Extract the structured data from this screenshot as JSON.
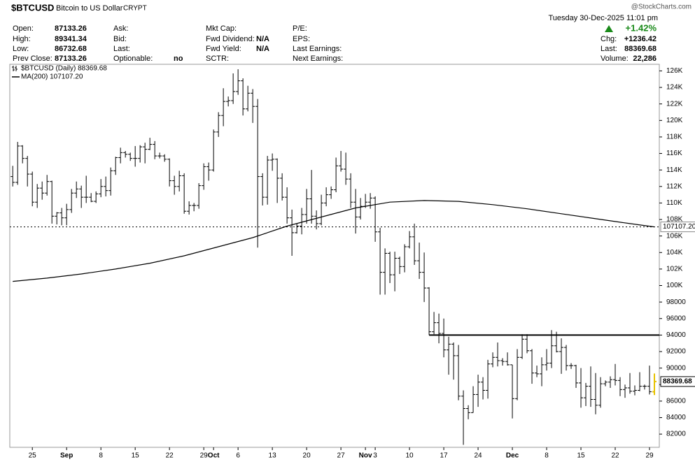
{
  "header": {
    "symbol": "$BTCUSD",
    "name": "Bitcoin to US Dollar",
    "exchange": "CRYPT",
    "brand": "@StockCharts.com",
    "datetime": "Tuesday 30-Dec-2025 11:01 pm",
    "col1": [
      {
        "label": "Open:",
        "value": "87133.26"
      },
      {
        "label": "High:",
        "value": "89341.34"
      },
      {
        "label": "Low:",
        "value": "86732.68"
      },
      {
        "label": "Prev Close:",
        "value": "87133.26"
      }
    ],
    "col2": [
      {
        "label": "Ask:"
      },
      {
        "label": "Bid:"
      },
      {
        "label": "Last:"
      },
      {
        "label": "Optionable:",
        "value": "no"
      }
    ],
    "col3": [
      {
        "label": "Mkt Cap:"
      },
      {
        "label": "Fwd Dividend:",
        "value": "N/A"
      },
      {
        "label": "Fwd Yield:",
        "value": "N/A"
      },
      {
        "label": "SCTR:"
      }
    ],
    "col4": [
      {
        "label": "P/E:"
      },
      {
        "label": "EPS:"
      },
      {
        "label": "Last Earnings:"
      },
      {
        "label": "Next Earnings:"
      }
    ],
    "change_pct": "+1.42%",
    "chg_label": "Chg:",
    "chg": "+1236.42",
    "last_label": "Last:",
    "last": "88369.68",
    "volume_label": "Volume:",
    "volume": "22,286"
  },
  "chart_data": {
    "type": "ohlc",
    "series": [
      {
        "name": "$BTCUSD (Daily) 88369.68",
        "color": "#000000",
        "last_color": "#e6c200",
        "open": [
          113.2,
          112.5,
          116.9,
          115.4,
          113.5,
          110.1,
          111.8,
          111.2,
          112.6,
          108.4,
          108.8,
          108.2,
          109.2,
          111.2,
          111.7,
          110.7,
          110.7,
          110.2,
          111.1,
          112.0,
          111.5,
          113.9,
          115.5,
          116.1,
          115.9,
          115.4,
          115.4,
          116.8,
          116.5,
          117.1,
          115.7,
          115.7,
          115.3,
          112.7,
          112.0,
          113.3,
          109.0,
          109.7,
          109.7,
          112.1,
          114.4,
          114.0,
          118.6,
          120.6,
          122.3,
          122.4,
          123.5,
          124.8,
          121.4,
          123.3,
          121.7,
          113.2,
          110.7,
          115.2,
          115.3,
          113.0,
          110.7,
          108.2,
          106.4,
          107.2,
          108.6,
          110.5,
          108.4,
          107.5,
          110.0,
          111.0,
          111.6,
          114.5,
          114.1,
          112.9,
          110.1,
          108.3,
          109.6,
          110.1,
          110.6,
          106.5,
          101.6,
          103.9,
          101.3,
          103.3,
          102.3,
          104.7,
          105.9,
          103.0,
          101.6,
          99.7,
          94.4,
          95.5,
          94.2,
          92.2,
          92.9,
          91.5,
          86.6,
          85.1,
          84.6,
          86.8,
          88.3,
          87.3,
          90.5,
          91.3,
          90.9,
          90.8,
          90.4,
          86.3,
          91.3,
          93.5,
          92.1,
          89.4,
          89.3,
          90.4,
          90.6,
          92.7,
          92.0,
          92.5,
          90.3,
          90.3,
          88.2,
          86.4,
          87.8,
          86.2,
          85.5,
          88.1,
          88.3,
          88.6,
          88.5,
          87.4,
          87.6,
          87.2,
          87.3,
          87.8,
          87.8,
          87.13326
        ],
        "high": [
          114.5,
          117.4,
          117.0,
          115.7,
          113.8,
          112.3,
          112.6,
          113.4,
          112.7,
          108.9,
          109.4,
          109.9,
          111.7,
          112.6,
          112.1,
          113.3,
          111.2,
          111.4,
          112.9,
          113.2,
          114.3,
          115.6,
          116.7,
          116.3,
          116.1,
          116.9,
          117.0,
          117.3,
          117.9,
          117.5,
          116.1,
          115.9,
          115.4,
          113.3,
          113.9,
          113.6,
          110.2,
          110.0,
          112.4,
          114.8,
          114.9,
          118.9,
          121.0,
          123.9,
          122.9,
          125.7,
          126.2,
          125.1,
          124.2,
          123.8,
          122.6,
          113.6,
          115.7,
          116.0,
          115.4,
          113.6,
          111.9,
          109.2,
          107.5,
          109.4,
          111.7,
          114.0,
          109.1,
          111.0,
          111.9,
          112.0,
          115.5,
          116.3,
          116.1,
          113.6,
          111.7,
          110.6,
          111.1,
          111.2,
          110.8,
          107.0,
          104.5,
          104.1,
          104.1,
          103.5,
          105.0,
          106.6,
          107.5,
          105.2,
          104.0,
          99.8,
          96.8,
          96.6,
          96.0,
          93.8,
          93.1,
          92.8,
          87.3,
          85.5,
          87.8,
          89.2,
          88.9,
          91.0,
          91.9,
          93.1,
          91.2,
          91.9,
          90.4,
          92.3,
          94.1,
          94.1,
          92.3,
          90.3,
          91.3,
          92.3,
          94.6,
          94.4,
          93.6,
          92.8,
          90.6,
          90.4,
          90.0,
          88.2,
          90.2,
          89.4,
          88.9,
          88.5,
          89.0,
          90.5,
          88.9,
          88.0,
          89.4,
          87.9,
          89.5,
          88.0,
          90.3,
          89.34134
        ],
        "low": [
          112.0,
          112.2,
          114.8,
          112.0,
          109.6,
          109.4,
          110.4,
          110.9,
          107.5,
          107.4,
          107.3,
          107.3,
          108.8,
          110.6,
          109.4,
          110.0,
          110.1,
          110.0,
          110.7,
          110.8,
          110.9,
          113.4,
          114.8,
          115.5,
          115.1,
          114.4,
          114.9,
          114.8,
          116.4,
          115.3,
          115.4,
          115.0,
          112.0,
          111.0,
          111.4,
          108.7,
          108.6,
          109.0,
          109.3,
          111.6,
          112.7,
          113.8,
          118.0,
          119.3,
          121.7,
          122.0,
          123.1,
          120.6,
          121.1,
          119.7,
          104.6,
          109.7,
          109.8,
          113.9,
          110.0,
          110.3,
          107.5,
          103.6,
          106.3,
          106.2,
          107.5,
          107.5,
          106.8,
          107.3,
          109.6,
          110.5,
          111.3,
          113.8,
          112.2,
          109.4,
          106.3,
          108.0,
          109.4,
          109.3,
          105.3,
          98.9,
          98.9,
          100.3,
          99.3,
          101.4,
          101.6,
          104.5,
          102.5,
          100.8,
          98.0,
          94.0,
          94.1,
          93.0,
          91.3,
          89.2,
          88.6,
          86.1,
          80.7,
          83.8,
          84.6,
          85.3,
          86.2,
          86.3,
          90.1,
          90.2,
          90.3,
          90.3,
          83.9,
          86.1,
          91.1,
          91.8,
          88.1,
          88.9,
          87.8,
          89.7,
          90.0,
          91.9,
          89.3,
          89.7,
          89.9,
          87.6,
          85.2,
          85.4,
          85.3,
          84.4,
          85.2,
          87.8,
          87.6,
          87.9,
          86.6,
          86.4,
          86.9,
          86.7,
          87.2,
          87.4,
          86.8,
          86.73268
        ],
        "close": [
          112.5,
          116.9,
          115.4,
          113.5,
          110.1,
          111.8,
          111.2,
          112.6,
          108.4,
          108.8,
          108.2,
          109.2,
          111.2,
          111.7,
          110.7,
          110.7,
          110.2,
          111.1,
          112.0,
          111.5,
          113.9,
          115.5,
          116.1,
          115.9,
          115.4,
          115.4,
          116.8,
          116.5,
          117.1,
          115.7,
          115.7,
          115.3,
          112.7,
          112.0,
          113.3,
          109.0,
          109.7,
          109.7,
          112.1,
          114.4,
          114.0,
          118.6,
          120.6,
          122.3,
          122.4,
          123.5,
          124.8,
          121.4,
          123.3,
          121.7,
          113.2,
          110.7,
          115.2,
          115.3,
          113.0,
          110.7,
          108.2,
          106.4,
          107.2,
          108.6,
          110.5,
          108.4,
          107.5,
          110.0,
          111.0,
          111.6,
          114.5,
          114.1,
          112.9,
          110.1,
          108.3,
          109.6,
          110.1,
          110.6,
          106.5,
          101.6,
          103.9,
          101.3,
          103.3,
          102.3,
          104.7,
          105.9,
          103.0,
          101.6,
          99.7,
          94.4,
          95.5,
          94.2,
          92.2,
          92.9,
          91.5,
          86.6,
          85.1,
          84.6,
          86.8,
          88.3,
          87.3,
          90.5,
          91.3,
          90.9,
          90.8,
          90.4,
          86.3,
          91.3,
          93.5,
          92.1,
          89.4,
          89.3,
          90.4,
          90.6,
          92.7,
          92.0,
          92.5,
          90.3,
          90.3,
          88.2,
          86.4,
          87.8,
          86.2,
          85.5,
          88.1,
          88.3,
          88.6,
          88.5,
          87.4,
          87.6,
          87.2,
          87.3,
          87.8,
          87.8,
          87.13326,
          88.36968
        ]
      },
      {
        "name": "MA(200) 107107.20",
        "type": "line",
        "color": "#000000",
        "x": [
          0,
          7,
          14,
          21,
          28,
          35,
          42,
          49,
          56,
          63,
          70,
          77,
          84,
          91,
          98,
          105,
          112,
          119,
          126,
          131
        ],
        "values": [
          100.5,
          100.9,
          101.4,
          102.0,
          102.7,
          103.6,
          104.7,
          105.8,
          107.2,
          108.3,
          109.4,
          110.1,
          110.3,
          110.2,
          109.8,
          109.3,
          108.7,
          108.1,
          107.5,
          107.1072
        ]
      }
    ],
    "xlim": [
      -0.6,
      132
    ],
    "ylim": [
      80.4,
      126.8
    ],
    "yticks": [
      {
        "value": 82,
        "label": "82000"
      },
      {
        "value": 84,
        "label": "84000"
      },
      {
        "value": 86,
        "label": "86000"
      },
      {
        "value": 88,
        "label": "88000"
      },
      {
        "value": 90,
        "label": "90000"
      },
      {
        "value": 92,
        "label": "92000"
      },
      {
        "value": 94,
        "label": "94000"
      },
      {
        "value": 96,
        "label": "96000"
      },
      {
        "value": 98,
        "label": "98000"
      },
      {
        "value": 100,
        "label": "100K"
      },
      {
        "value": 102,
        "label": "102K"
      },
      {
        "value": 104,
        "label": "104K"
      },
      {
        "value": 106,
        "label": "106K"
      },
      {
        "value": 108,
        "label": "108K"
      },
      {
        "value": 110,
        "label": "110K"
      },
      {
        "value": 112,
        "label": "112K"
      },
      {
        "value": 114,
        "label": "114K"
      },
      {
        "value": 116,
        "label": "116K"
      },
      {
        "value": 118,
        "label": "118K"
      },
      {
        "value": 120,
        "label": "120K"
      },
      {
        "value": 122,
        "label": "122K"
      },
      {
        "value": 124,
        "label": "124K"
      },
      {
        "value": 126,
        "label": "126K"
      }
    ],
    "xticks": [
      {
        "value": 4,
        "label": "25"
      },
      {
        "value": 11,
        "label": "Sep"
      },
      {
        "value": 18,
        "label": "8"
      },
      {
        "value": 25,
        "label": "15"
      },
      {
        "value": 32,
        "label": "22"
      },
      {
        "value": 39,
        "label": "29"
      },
      {
        "value": 41,
        "label": "Oct"
      },
      {
        "value": 46,
        "label": "6"
      },
      {
        "value": 53,
        "label": "13"
      },
      {
        "value": 60,
        "label": "20"
      },
      {
        "value": 67,
        "label": "27"
      },
      {
        "value": 72,
        "label": "Nov"
      },
      {
        "value": 74,
        "label": "3"
      },
      {
        "value": 81,
        "label": "10"
      },
      {
        "value": 88,
        "label": "17"
      },
      {
        "value": 95,
        "label": "24"
      },
      {
        "value": 102,
        "label": "Dec"
      },
      {
        "value": 109,
        "label": "8"
      },
      {
        "value": 116,
        "label": "15"
      },
      {
        "value": 123,
        "label": "22"
      },
      {
        "value": 130,
        "label": "29"
      }
    ],
    "resistance": {
      "value": 94,
      "x_start": 85
    },
    "price_labels": [
      {
        "value": 107.1072,
        "label": "107107.20"
      },
      {
        "value": 88.36968,
        "label": "88369.68"
      }
    ]
  }
}
